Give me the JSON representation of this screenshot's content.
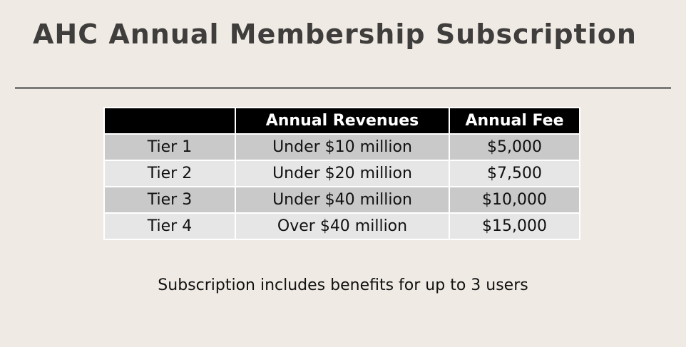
{
  "title": "AHC Annual Membership Subscription",
  "table": {
    "headers": [
      "",
      "Annual Revenues",
      "Annual Fee"
    ],
    "rows": [
      {
        "tier": "Tier 1",
        "revenues": "Under $10 million",
        "fee": "$5,000"
      },
      {
        "tier": "Tier 2",
        "revenues": "Under $20 million",
        "fee": "$7,500"
      },
      {
        "tier": "Tier 3",
        "revenues": "Under $40 million",
        "fee": "$10,000"
      },
      {
        "tier": "Tier 4",
        "revenues": "Over $40 million",
        "fee": "$15,000"
      }
    ]
  },
  "note": "Subscription includes benefits for up to 3 users",
  "colors": {
    "background": "#efebe4",
    "title": "#3f3e3c",
    "header_bg": "#000000",
    "row_dark": "#c9c9c9",
    "row_light": "#e6e6e6"
  }
}
